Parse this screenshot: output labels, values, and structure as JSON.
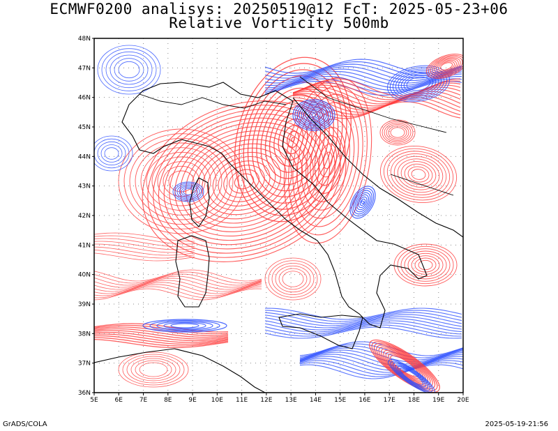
{
  "title_line1": "ECMWF0200 analisys: 20250519@12 FcT: 2025-05-23+06",
  "title_line2": "Relative Vorticity 500mb",
  "footer_left": "GrADS/COLA",
  "footer_right": "2025-05-19-21:56",
  "map": {
    "lon_range": [
      5,
      20
    ],
    "lat_range": [
      36,
      48
    ],
    "lon_labels": [
      "5E",
      "6E",
      "7E",
      "8E",
      "9E",
      "10E",
      "11E",
      "12E",
      "13E",
      "14E",
      "15E",
      "16E",
      "17E",
      "18E",
      "19E",
      "20E"
    ],
    "lat_labels": [
      "36N",
      "37N",
      "38N",
      "39N",
      "40N",
      "41N",
      "42N",
      "43N",
      "44N",
      "45N",
      "46N",
      "47N",
      "48N"
    ],
    "colors": {
      "positive_vorticity": "#ff3b3b",
      "negative_vorticity": "#2a4dff",
      "coastline": "#000000",
      "grid": "#888888"
    }
  }
}
